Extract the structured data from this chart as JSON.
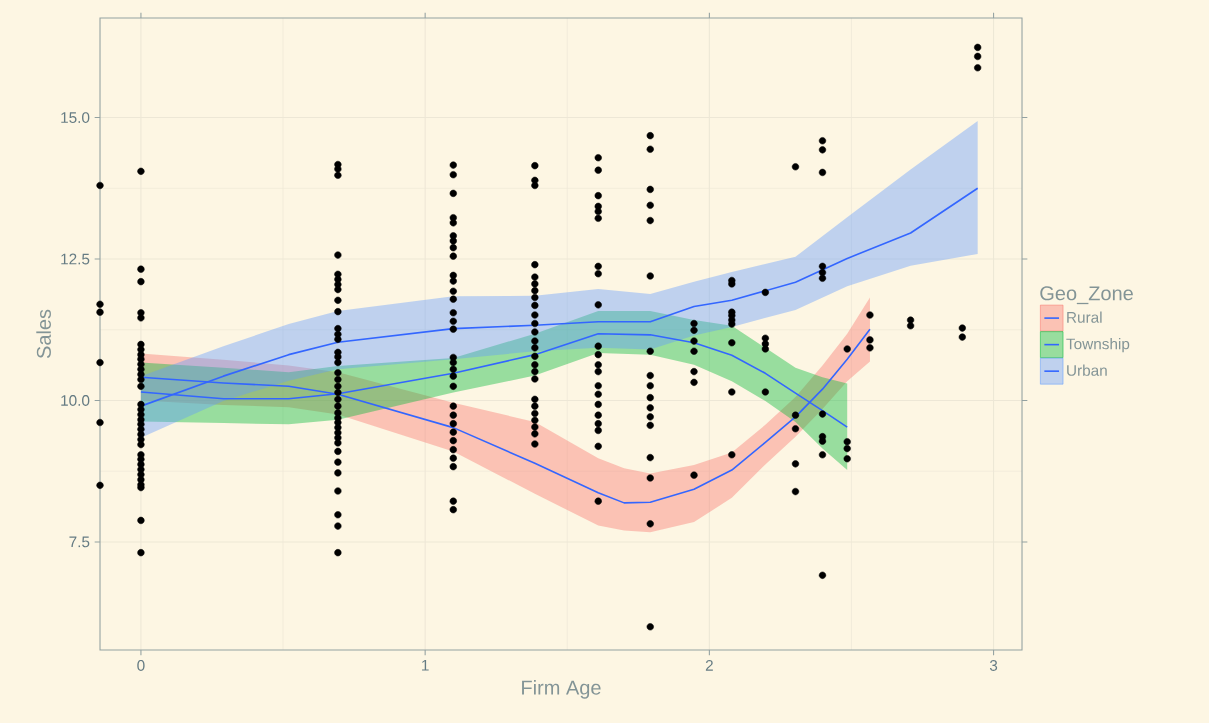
{
  "chart_data": {
    "type": "scatter",
    "xlabel": "Firm Age",
    "ylabel": "Sales",
    "legend_title": "Geo_Zone",
    "legend": "right",
    "grid": true,
    "xlim": [
      -0.144,
      3.1
    ],
    "ylim": [
      5.59,
      16.76
    ],
    "xticks": [
      0,
      1,
      2,
      3
    ],
    "yticks": [
      {
        "value": 7.5,
        "label": "7.5"
      },
      {
        "value": 10,
        "label": "10.0"
      },
      {
        "value": 12.5,
        "label": "12.5"
      },
      {
        "value": 15,
        "label": "15.0"
      }
    ],
    "series": [
      {
        "marker": "circle",
        "color": "#000000",
        "x": [
          -0.144,
          -0.144,
          -0.144,
          -0.144,
          -0.144,
          -0.144,
          0,
          0,
          0,
          0,
          0,
          0,
          0,
          0,
          0,
          0,
          0,
          0,
          0,
          0,
          0,
          0,
          0,
          0,
          0,
          0,
          0,
          0,
          0,
          0,
          0,
          0,
          0,
          0,
          0,
          0,
          0,
          0,
          0,
          0.693,
          0.693,
          0.693,
          0.693,
          0.693,
          0.693,
          0.693,
          0.693,
          0.693,
          0.693,
          0.693,
          0.693,
          0.693,
          0.693,
          0.693,
          0.693,
          0.693,
          0.693,
          0.693,
          0.693,
          0.693,
          0.693,
          0.693,
          0.693,
          0.693,
          0.693,
          0.693,
          0.693,
          0.693,
          0.693,
          0.693,
          0.693,
          0.693,
          0.693,
          0.693,
          0.693,
          1.099,
          1.099,
          1.099,
          1.099,
          1.099,
          1.099,
          1.099,
          1.099,
          1.099,
          1.099,
          1.099,
          1.099,
          1.099,
          1.099,
          1.099,
          1.099,
          1.099,
          1.099,
          1.099,
          1.099,
          1.099,
          1.099,
          1.099,
          1.099,
          1.099,
          1.099,
          1.099,
          1.099,
          1.099,
          1.099,
          1.099,
          1.386,
          1.386,
          1.386,
          1.386,
          1.386,
          1.386,
          1.386,
          1.386,
          1.386,
          1.386,
          1.386,
          1.386,
          1.386,
          1.386,
          1.386,
          1.386,
          1.386,
          1.386,
          1.386,
          1.386,
          1.386,
          1.386,
          1.386,
          1.386,
          1.386,
          1.609,
          1.609,
          1.609,
          1.609,
          1.609,
          1.609,
          1.609,
          1.609,
          1.609,
          1.609,
          1.609,
          1.609,
          1.609,
          1.609,
          1.609,
          1.609,
          1.609,
          1.609,
          1.609,
          1.609,
          1.609,
          1.792,
          1.792,
          1.792,
          1.792,
          1.792,
          1.792,
          1.792,
          1.792,
          1.792,
          1.792,
          1.792,
          1.792,
          1.792,
          1.792,
          1.792,
          1.792,
          1.792,
          1.946,
          1.946,
          1.946,
          1.946,
          1.946,
          1.946,
          1.946,
          2.079,
          2.079,
          2.079,
          2.079,
          2.079,
          2.079,
          2.079,
          2.079,
          2.079,
          2.197,
          2.197,
          2.197,
          2.197,
          2.197,
          2.303,
          2.303,
          2.303,
          2.303,
          2.303,
          2.398,
          2.398,
          2.398,
          2.398,
          2.398,
          2.398,
          2.398,
          2.398,
          2.398,
          2.398,
          2.398,
          2.485,
          2.485,
          2.485,
          2.485,
          2.565,
          2.565,
          2.565,
          2.708,
          2.708,
          2.89,
          2.89,
          2.944,
          2.944,
          2.944
        ],
        "values": [
          13.8,
          11.7,
          11.56,
          10.67,
          9.61,
          8.5,
          14.05,
          12.32,
          12.1,
          11.55,
          11.46,
          10.99,
          10.9,
          10.81,
          10.73,
          10.64,
          10.55,
          10.46,
          10.37,
          10.25,
          9.93,
          9.84,
          9.75,
          9.66,
          9.58,
          9.49,
          9.4,
          9.31,
          9.22,
          9.04,
          8.96,
          8.87,
          8.78,
          8.69,
          8.6,
          8.51,
          8.46,
          7.88,
          7.31,
          14.17,
          14.09,
          13.98,
          12.57,
          12.23,
          12.14,
          12.05,
          11.96,
          11.77,
          11.57,
          11.27,
          11.17,
          11.08,
          10.85,
          10.77,
          10.67,
          10.49,
          10.37,
          10.25,
          10.14,
          10.02,
          9.9,
          9.78,
          9.69,
          9.61,
          9.52,
          9.43,
          9.34,
          9.25,
          9.1,
          8.91,
          8.72,
          8.4,
          7.98,
          7.78,
          7.31,
          14.16,
          13.99,
          13.66,
          13.23,
          13.14,
          12.91,
          12.82,
          12.7,
          12.55,
          12.21,
          12.11,
          11.93,
          11.79,
          11.55,
          11.4,
          11.26,
          10.76,
          10.67,
          10.55,
          10.43,
          10.25,
          9.9,
          9.74,
          9.59,
          9.44,
          9.29,
          9.13,
          8.98,
          8.83,
          8.22,
          8.07,
          14.15,
          13.89,
          13.8,
          12.4,
          12.18,
          12.06,
          11.94,
          11.82,
          11.68,
          11.51,
          11.36,
          11.21,
          11.05,
          10.93,
          10.78,
          10.63,
          10.51,
          10.38,
          10.02,
          9.9,
          9.77,
          9.65,
          9.53,
          9.41,
          9.23,
          14.29,
          14.07,
          13.62,
          13.43,
          13.34,
          13.22,
          12.37,
          12.24,
          11.69,
          10.96,
          10.81,
          10.63,
          10.51,
          10.26,
          10.11,
          9.93,
          9.74,
          9.59,
          9.47,
          9.19,
          8.22,
          14.68,
          14.44,
          13.73,
          13.45,
          13.18,
          12.2,
          10.87,
          10.44,
          10.26,
          10.05,
          9.87,
          9.71,
          9.56,
          8.99,
          8.63,
          7.82,
          6.0,
          11.36,
          11.24,
          11.05,
          10.87,
          10.51,
          10.32,
          8.68,
          12.12,
          12.06,
          11.56,
          11.5,
          11.42,
          11.35,
          11.02,
          10.15,
          9.04,
          11.91,
          11.1,
          11.0,
          10.91,
          10.15,
          14.13,
          9.74,
          9.5,
          8.88,
          8.39,
          14.59,
          14.43,
          14.03,
          12.37,
          12.26,
          12.16,
          9.76,
          9.36,
          9.28,
          9.04,
          6.91,
          10.91,
          9.27,
          9.15,
          8.97,
          11.51,
          11.07,
          10.93,
          11.42,
          11.32,
          11.28,
          11.12,
          16.24,
          16.08,
          15.88
        ]
      },
      {
        "type": "line",
        "name": "Rural",
        "color": "#3366ff",
        "x": [
          0,
          0.29,
          0.52,
          0.693,
          1.099,
          1.386,
          1.609,
          1.7,
          1.792,
          1.946,
          2.079,
          2.197,
          2.303,
          2.398,
          2.485,
          2.565
        ],
        "values": [
          10.41,
          10.31,
          10.25,
          10.11,
          9.52,
          8.89,
          8.37,
          8.19,
          8.2,
          8.43,
          8.77,
          9.26,
          9.71,
          10.2,
          10.73,
          11.26
        ],
        "upper": [
          10.83,
          10.72,
          10.62,
          10.5,
          9.96,
          9.62,
          8.98,
          8.8,
          8.71,
          8.86,
          9.08,
          9.57,
          10.06,
          10.62,
          11.18,
          11.82
        ],
        "lower": [
          10.0,
          9.92,
          9.88,
          9.75,
          9.1,
          8.35,
          7.79,
          7.7,
          7.67,
          7.85,
          8.28,
          8.87,
          9.36,
          9.85,
          10.34,
          10.69
        ]
      },
      {
        "type": "line",
        "name": "Township",
        "color": "#3366ff",
        "x": [
          0,
          0.29,
          0.52,
          0.693,
          1.099,
          1.386,
          1.609,
          1.792,
          1.946,
          2.079,
          2.197,
          2.303,
          2.398,
          2.485
        ],
        "values": [
          10.15,
          10.03,
          10.03,
          10.12,
          10.48,
          10.81,
          11.18,
          11.16,
          11.02,
          10.8,
          10.48,
          10.13,
          9.82,
          9.53
        ],
        "upper": [
          10.67,
          10.58,
          10.5,
          10.61,
          10.75,
          11.18,
          11.58,
          11.58,
          11.42,
          11.32,
          10.93,
          10.58,
          10.41,
          10.3
        ],
        "lower": [
          9.63,
          9.6,
          9.58,
          9.66,
          10.14,
          10.44,
          10.84,
          10.81,
          10.63,
          10.34,
          9.99,
          9.62,
          9.15,
          8.77
        ]
      },
      {
        "type": "line",
        "name": "Urban",
        "color": "#3366ff",
        "x": [
          0,
          0.29,
          0.52,
          0.693,
          1.099,
          1.386,
          1.609,
          1.792,
          1.946,
          2.079,
          2.303,
          2.485,
          2.708,
          2.944
        ],
        "values": [
          9.9,
          10.43,
          10.81,
          11.03,
          11.27,
          11.33,
          11.39,
          11.39,
          11.66,
          11.77,
          12.09,
          12.51,
          12.96,
          13.75
        ],
        "upper": [
          10.43,
          10.96,
          11.35,
          11.58,
          11.84,
          11.85,
          11.97,
          11.88,
          12.1,
          12.27,
          12.54,
          13.24,
          14.08,
          14.94
        ],
        "lower": [
          9.34,
          9.99,
          10.35,
          10.55,
          10.73,
          10.87,
          10.93,
          10.9,
          11.15,
          11.3,
          11.6,
          12.02,
          12.38,
          12.59
        ]
      }
    ]
  }
}
